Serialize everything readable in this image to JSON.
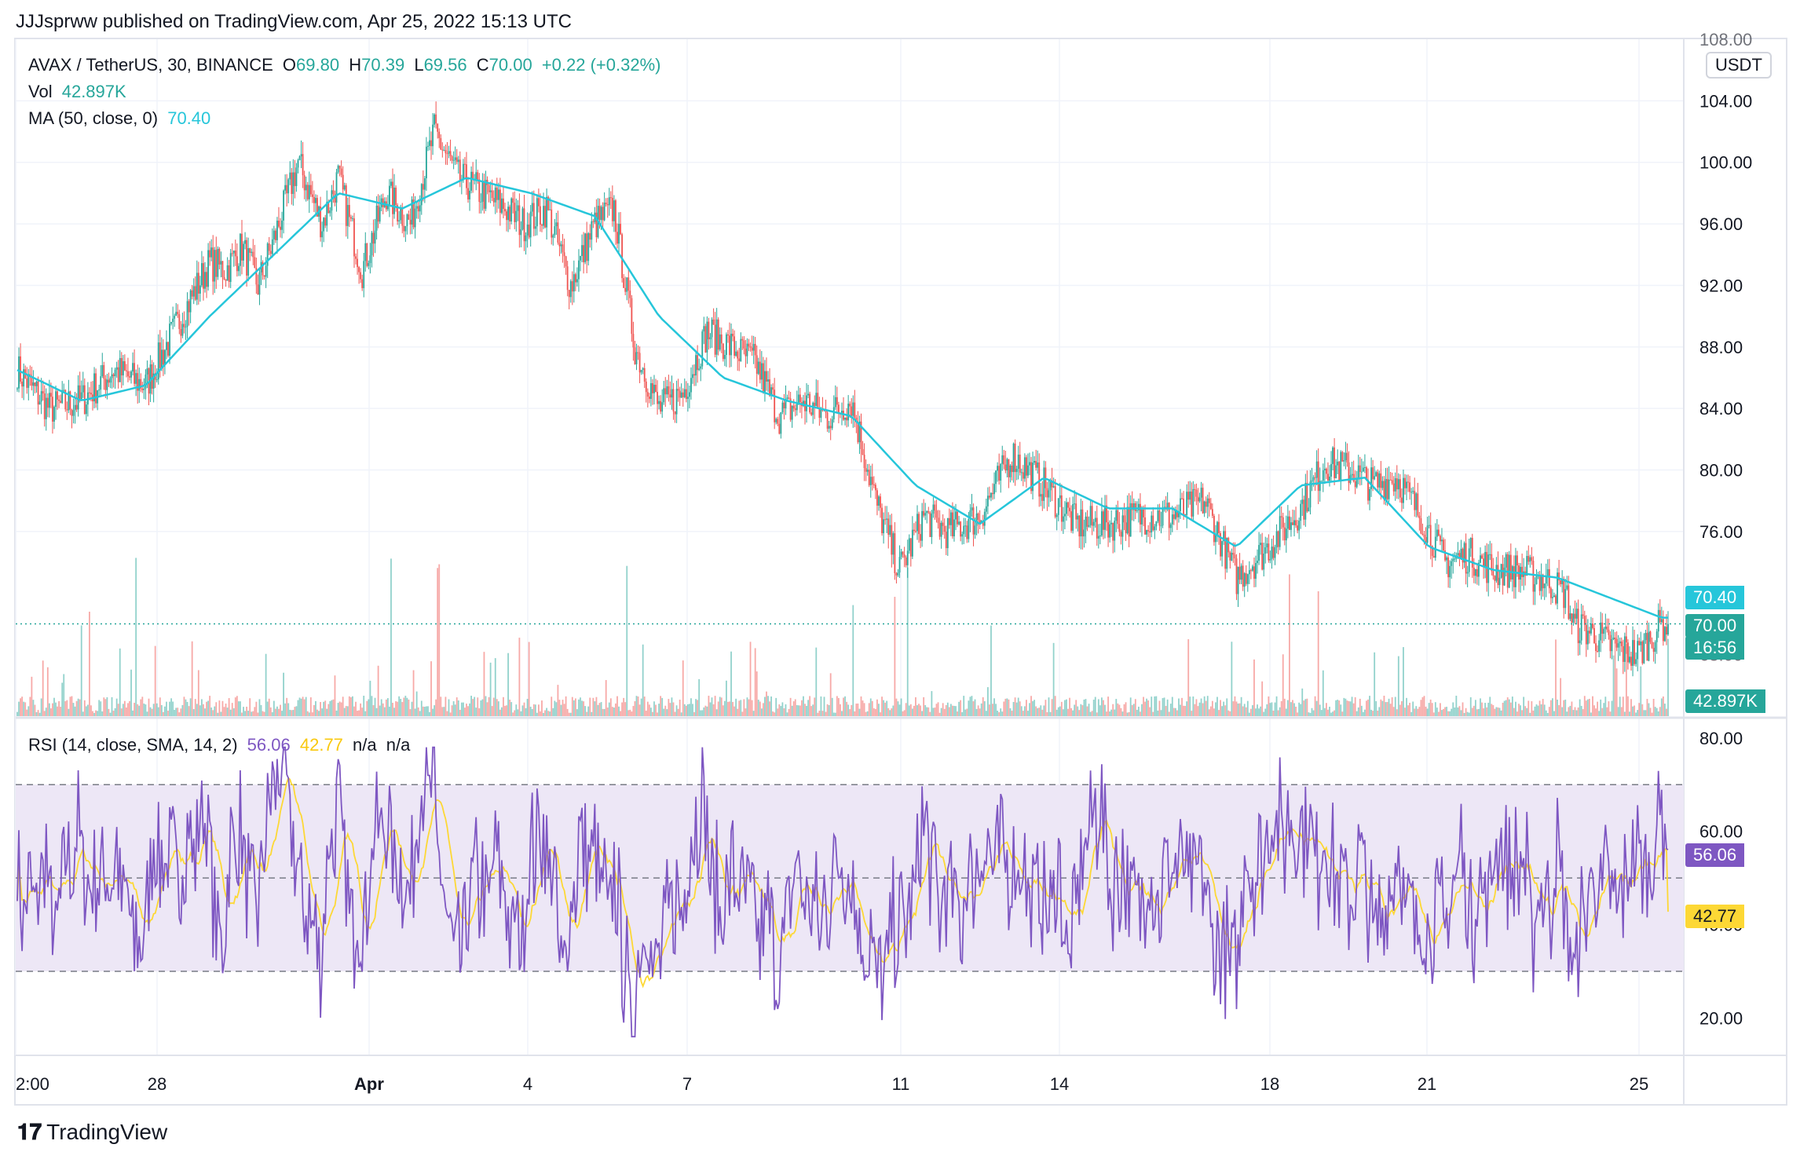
{
  "published": "JJJsprww published on TradingView.com, Apr 25, 2022 15:13 UTC",
  "symbol": "AVAX / TetherUS, 30, BINANCE",
  "ohlc": {
    "o_label": "O",
    "o": "69.80",
    "h_label": "H",
    "h": "70.39",
    "l_label": "L",
    "l": "69.56",
    "c_label": "C",
    "c": "70.00",
    "chg": "+0.22 (+0.32%)"
  },
  "vol": {
    "label": "Vol",
    "value": "42.897K"
  },
  "ma": {
    "label": "MA (50, close, 0)",
    "value": "70.40"
  },
  "rsi": {
    "label": "RSI (14, close, SMA, 14, 2)",
    "value": "56.06",
    "sma": "42.77",
    "na1": "n/a",
    "na2": "n/a"
  },
  "currency": "USDT",
  "tags": {
    "ma": "70.40",
    "price": "70.00",
    "countdown": "16:56",
    "volume": "42.897K",
    "rsi": "56.06",
    "rsi_sma": "42.77"
  },
  "footer": "TradingView",
  "colors": {
    "up": "#26a69a",
    "down": "#ef5350",
    "ma": "#26c6da",
    "rsi": "#7e57c2",
    "rsi_sma": "#fdd835",
    "band": "#ede7f6"
  },
  "chart_data": [
    {
      "type": "candlestick",
      "title": "AVAX / TetherUS, 30, BINANCE",
      "ylabel": "USDT",
      "y_ticks": [
        "104.00",
        "100.00",
        "96.00",
        "92.00",
        "88.00",
        "84.00",
        "80.00",
        "76.00"
      ],
      "y_ticks_partial": [
        "108.00",
        "72.00",
        "68.00"
      ],
      "ylim": [
        64,
        108
      ],
      "x_ticks": [
        "2:00",
        "28",
        "Apr",
        "4",
        "7",
        "11",
        "14",
        "18",
        "21",
        "25"
      ],
      "close_path": {
        "x_index": [
          0,
          20,
          40,
          60,
          80,
          100,
          120,
          130,
          140,
          150,
          160,
          175,
          190,
          200,
          215,
          230,
          245,
          260,
          275,
          290,
          305,
          315,
          330,
          345,
          360,
          372,
          385,
          400,
          415,
          430,
          445,
          460,
          475,
          490,
          505,
          520,
          535,
          550,
          565,
          580,
          600,
          620,
          640,
          660,
          680,
          700,
          720,
          740,
          760,
          780,
          800,
          815,
          830,
          845,
          860,
          875,
          890,
          905,
          920,
          935,
          950,
          965,
          970,
          980,
          995,
          1010,
          1025
        ],
        "close": [
          86.5,
          84,
          84.5,
          86.5,
          85.5,
          89.5,
          93.5,
          93,
          94.5,
          92,
          95,
          100,
          96,
          99,
          93,
          98,
          96,
          102,
          99,
          98,
          97,
          96,
          97,
          92,
          96,
          97,
          88,
          84,
          85,
          89,
          88,
          87,
          83.5,
          84.5,
          83.5,
          84.5,
          78,
          73.5,
          77,
          76,
          77,
          81,
          79,
          76.5,
          76.5,
          77,
          77,
          78,
          73,
          75,
          77.5,
          80.5,
          80,
          79,
          79.5,
          77,
          74,
          74.5,
          73.5,
          73.5,
          73,
          72,
          70,
          69.5,
          68.5,
          68,
          70
        ]
      },
      "ma_path": {
        "x_index": [
          0,
          40,
          80,
          120,
          160,
          200,
          240,
          280,
          320,
          360,
          400,
          440,
          480,
          520,
          560,
          600,
          640,
          680,
          720,
          760,
          800,
          840,
          880,
          920,
          960,
          1025
        ],
        "ma": [
          86.5,
          84.5,
          85.5,
          90,
          94,
          98,
          97,
          99,
          98,
          96.5,
          90,
          86,
          84.5,
          83.5,
          79,
          76.5,
          79.5,
          77.5,
          77.5,
          75,
          79,
          79.5,
          75,
          73.5,
          73,
          70.4
        ]
      },
      "last": {
        "price": 70.0,
        "ma": 70.4
      }
    },
    {
      "type": "bar",
      "title": "Vol",
      "last_value": "42.897K"
    },
    {
      "type": "line",
      "title": "RSI (14, close, SMA, 14, 2)",
      "y_ticks": [
        "80.00",
        "60.00",
        "40.00",
        "20.00"
      ],
      "ylim": [
        12,
        84
      ],
      "levels": [
        70,
        50,
        30
      ],
      "series": [
        {
          "name": "RSI",
          "last": 56.06
        },
        {
          "name": "SMA",
          "last": 42.77
        }
      ]
    }
  ]
}
